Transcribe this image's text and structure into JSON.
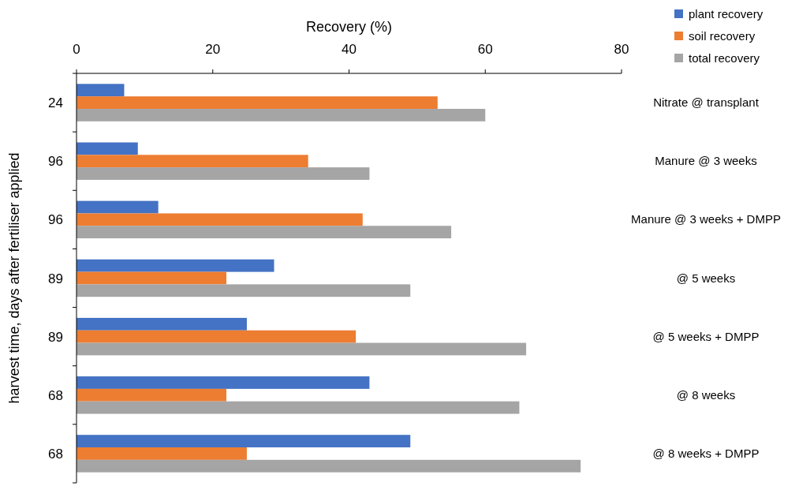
{
  "chart_data": {
    "type": "bar",
    "orientation": "horizontal",
    "xlabel": "Recovery (%)",
    "ylabel": "harvest time, days after fertiliser applied",
    "categories": [
      "24",
      "96",
      "96",
      "89",
      "89",
      "68",
      "68"
    ],
    "series": [
      {
        "name": "plant recovery",
        "color": "#4472c4",
        "values": [
          7,
          9,
          12,
          29,
          25,
          43,
          49
        ]
      },
      {
        "name": "soil recovery",
        "color": "#ed7d31",
        "values": [
          53,
          34,
          42,
          22,
          41,
          22,
          25
        ]
      },
      {
        "name": "total recovery",
        "color": "#a5a5a5",
        "values": [
          60,
          43,
          55,
          49,
          66,
          65,
          74
        ]
      }
    ],
    "xlim": [
      0,
      80
    ],
    "xticks": [
      0,
      20,
      40,
      60,
      80
    ],
    "legend": "top right",
    "grid": false,
    "annotations": [
      "Nitrate @ transplant",
      "Manure @ 3 weeks",
      "Manure @ 3 weeks + DMPP",
      "@ 5 weeks",
      "@ 5 weeks + DMPP",
      "@ 8 weeks",
      "@ 8 weeks + DMPP"
    ]
  }
}
